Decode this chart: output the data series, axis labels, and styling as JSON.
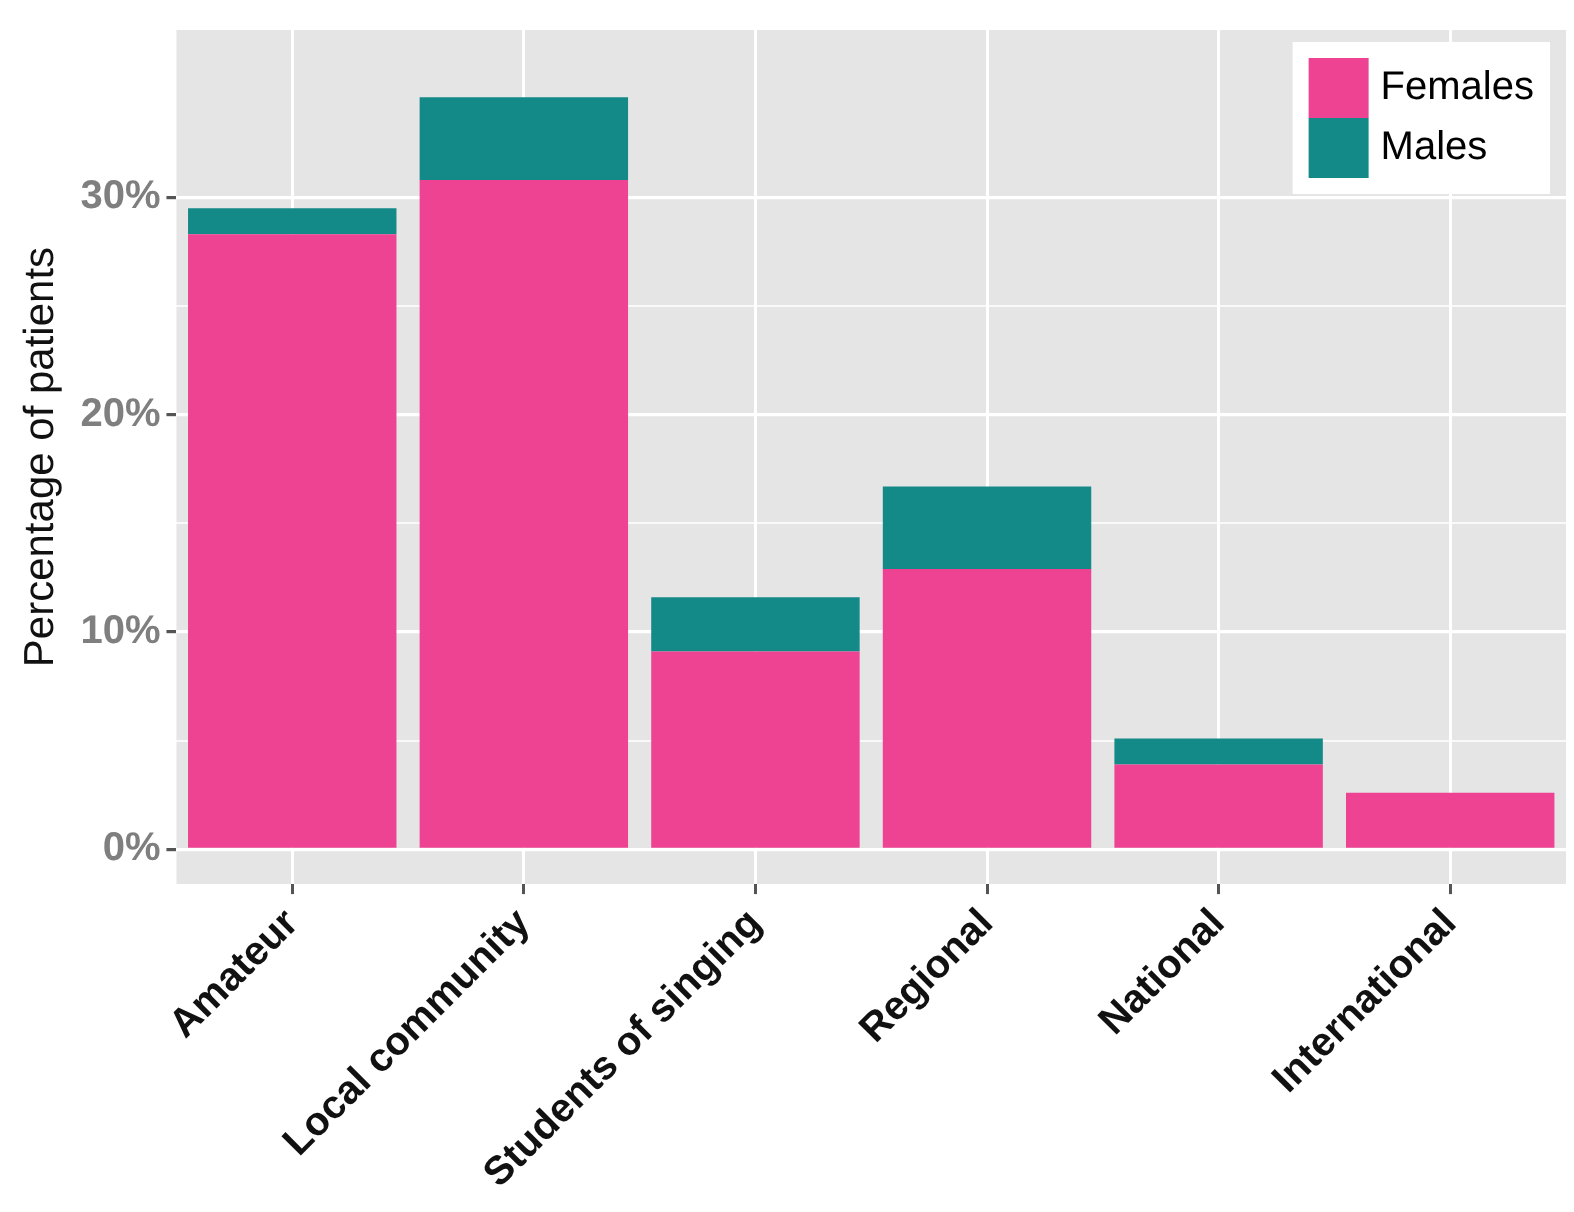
{
  "chart_data": {
    "type": "bar",
    "stacked": true,
    "ylabel": "Percentage of patients",
    "categories": [
      "Amateur",
      "Local community",
      "Students of singing",
      "Regional",
      "National",
      "International"
    ],
    "series": [
      {
        "name": "Females",
        "color": "#ee4292",
        "values": [
          28.3,
          30.8,
          9.1,
          12.9,
          3.9,
          2.6
        ]
      },
      {
        "name": "Males",
        "color": "#138a87",
        "values": [
          1.2,
          3.8,
          2.5,
          3.8,
          1.2,
          0
        ]
      }
    ],
    "ylim": [
      -1.6,
      37.7
    ],
    "yticks": [
      {
        "value": 0,
        "label": "0%"
      },
      {
        "value": 5,
        "label": null
      },
      {
        "value": 10,
        "label": "10%"
      },
      {
        "value": 15,
        "label": null
      },
      {
        "value": 20,
        "label": "20%"
      },
      {
        "value": 25,
        "label": null
      },
      {
        "value": 30,
        "label": "30%"
      }
    ],
    "grid": true,
    "legend": "top right"
  }
}
